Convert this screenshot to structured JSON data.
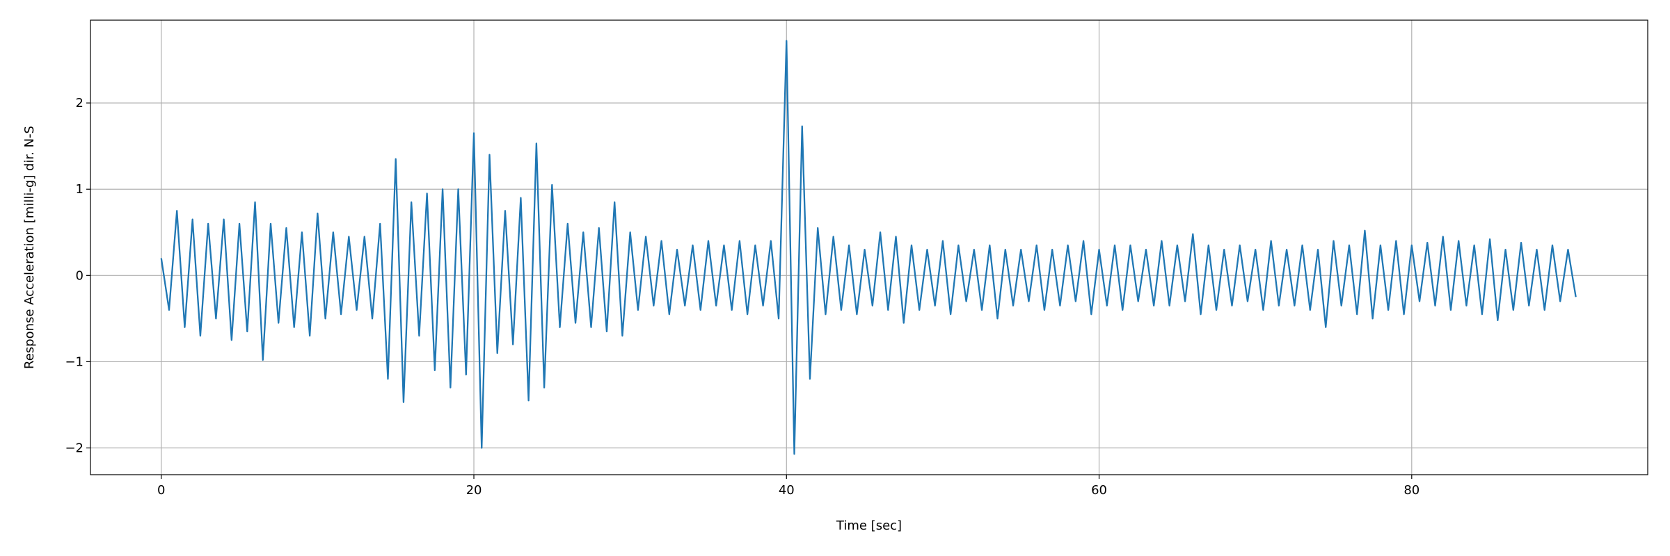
{
  "chart_data": {
    "type": "line",
    "xlabel": "Time [sec]",
    "ylabel": "Response Acceleration [milli-g] dir. N-S",
    "xlim": [
      -4.53,
      95.1
    ],
    "ylim": [
      -2.31,
      2.96
    ],
    "xticks": [
      0,
      20,
      40,
      60,
      80
    ],
    "yticks": [
      {
        "value": -2,
        "label": "−2"
      },
      {
        "value": -1,
        "label": "−1"
      },
      0,
      1,
      2
    ],
    "grid": true,
    "series": [
      {
        "color": "#1f77b4",
        "x": [
          0,
          0.5,
          1,
          1.5,
          2,
          2.5,
          3,
          3.5,
          4,
          4.5,
          5,
          5.5,
          6,
          6.5,
          7,
          7.5,
          8,
          8.5,
          9,
          9.5,
          10,
          10.5,
          11,
          11.5,
          12,
          12.5,
          13,
          13.5,
          14,
          14.5,
          15,
          15.5,
          16,
          16.5,
          17,
          17.5,
          18,
          18.5,
          19,
          19.5,
          20,
          20.5,
          21,
          21.5,
          22,
          22.5,
          23,
          23.5,
          24,
          24.5,
          25,
          25.5,
          26,
          26.5,
          27,
          27.5,
          28,
          28.5,
          29,
          29.5,
          30,
          30.5,
          31,
          31.5,
          32,
          32.5,
          33,
          33.5,
          34,
          34.5,
          35,
          35.5,
          36,
          36.5,
          37,
          37.5,
          38,
          38.5,
          39,
          39.5,
          40,
          40.5,
          41,
          41.5,
          42,
          42.5,
          43,
          43.5,
          44,
          44.5,
          45,
          45.5,
          46,
          46.5,
          47,
          47.5,
          48,
          48.5,
          49,
          49.5,
          50,
          50.5,
          51,
          51.5,
          52,
          52.5,
          53,
          53.5,
          54,
          54.5,
          55,
          55.5,
          56,
          56.5,
          57,
          57.5,
          58,
          58.5,
          59,
          59.5,
          60,
          60.5,
          61,
          61.5,
          62,
          62.5,
          63,
          63.5,
          64,
          64.5,
          65,
          65.5,
          66,
          66.5,
          67,
          67.5,
          68,
          68.5,
          69,
          69.5,
          70,
          70.5,
          71,
          71.5,
          72,
          72.5,
          73,
          73.5,
          74,
          74.5,
          75,
          75.5,
          76,
          76.5,
          77,
          77.5,
          78,
          78.5,
          79,
          79.5,
          80,
          80.5,
          81,
          81.5,
          82,
          82.5,
          83,
          83.5,
          84,
          84.5,
          85,
          85.5,
          86,
          86.5,
          87,
          87.5,
          88,
          88.5,
          89,
          89.5,
          90,
          90.5
        ],
        "values": [
          0.2,
          -0.4,
          0.75,
          -0.6,
          0.65,
          -0.7,
          0.6,
          -0.5,
          0.65,
          -0.75,
          0.6,
          -0.65,
          0.85,
          -0.98,
          0.6,
          -0.55,
          0.55,
          -0.6,
          0.5,
          -0.7,
          0.72,
          -0.5,
          0.5,
          -0.45,
          0.45,
          -0.4,
          0.45,
          -0.5,
          0.6,
          -1.2,
          1.35,
          -1.47,
          0.85,
          -0.7,
          0.95,
          -1.1,
          1.0,
          -1.3,
          1.0,
          -1.15,
          1.65,
          -2.0,
          1.4,
          -0.9,
          0.75,
          -0.8,
          0.9,
          -1.45,
          1.53,
          -1.3,
          1.05,
          -0.6,
          0.6,
          -0.55,
          0.5,
          -0.6,
          0.55,
          -0.65,
          0.85,
          -0.7,
          0.5,
          -0.4,
          0.45,
          -0.35,
          0.4,
          -0.45,
          0.3,
          -0.35,
          0.35,
          -0.4,
          0.4,
          -0.35,
          0.35,
          -0.4,
          0.4,
          -0.45,
          0.35,
          -0.35,
          0.4,
          -0.5,
          2.72,
          -2.07,
          1.73,
          -1.2,
          0.55,
          -0.45,
          0.45,
          -0.4,
          0.35,
          -0.45,
          0.3,
          -0.35,
          0.5,
          -0.4,
          0.45,
          -0.55,
          0.35,
          -0.4,
          0.3,
          -0.35,
          0.4,
          -0.45,
          0.35,
          -0.3,
          0.3,
          -0.4,
          0.35,
          -0.5,
          0.3,
          -0.35,
          0.3,
          -0.3,
          0.35,
          -0.4,
          0.3,
          -0.35,
          0.35,
          -0.3,
          0.4,
          -0.45,
          0.3,
          -0.35,
          0.35,
          -0.4,
          0.35,
          -0.3,
          0.3,
          -0.35,
          0.4,
          -0.35,
          0.35,
          -0.3,
          0.48,
          -0.45,
          0.35,
          -0.4,
          0.3,
          -0.35,
          0.35,
          -0.3,
          0.3,
          -0.4,
          0.4,
          -0.35,
          0.3,
          -0.35,
          0.35,
          -0.4,
          0.3,
          -0.6,
          0.4,
          -0.35,
          0.35,
          -0.45,
          0.52,
          -0.5,
          0.35,
          -0.4,
          0.4,
          -0.45,
          0.35,
          -0.3,
          0.38,
          -0.35,
          0.45,
          -0.4,
          0.4,
          -0.35,
          0.35,
          -0.45,
          0.42,
          -0.52,
          0.3,
          -0.4,
          0.38,
          -0.35,
          0.3,
          -0.4,
          0.35,
          -0.3,
          0.3,
          -0.25
        ]
      }
    ]
  }
}
